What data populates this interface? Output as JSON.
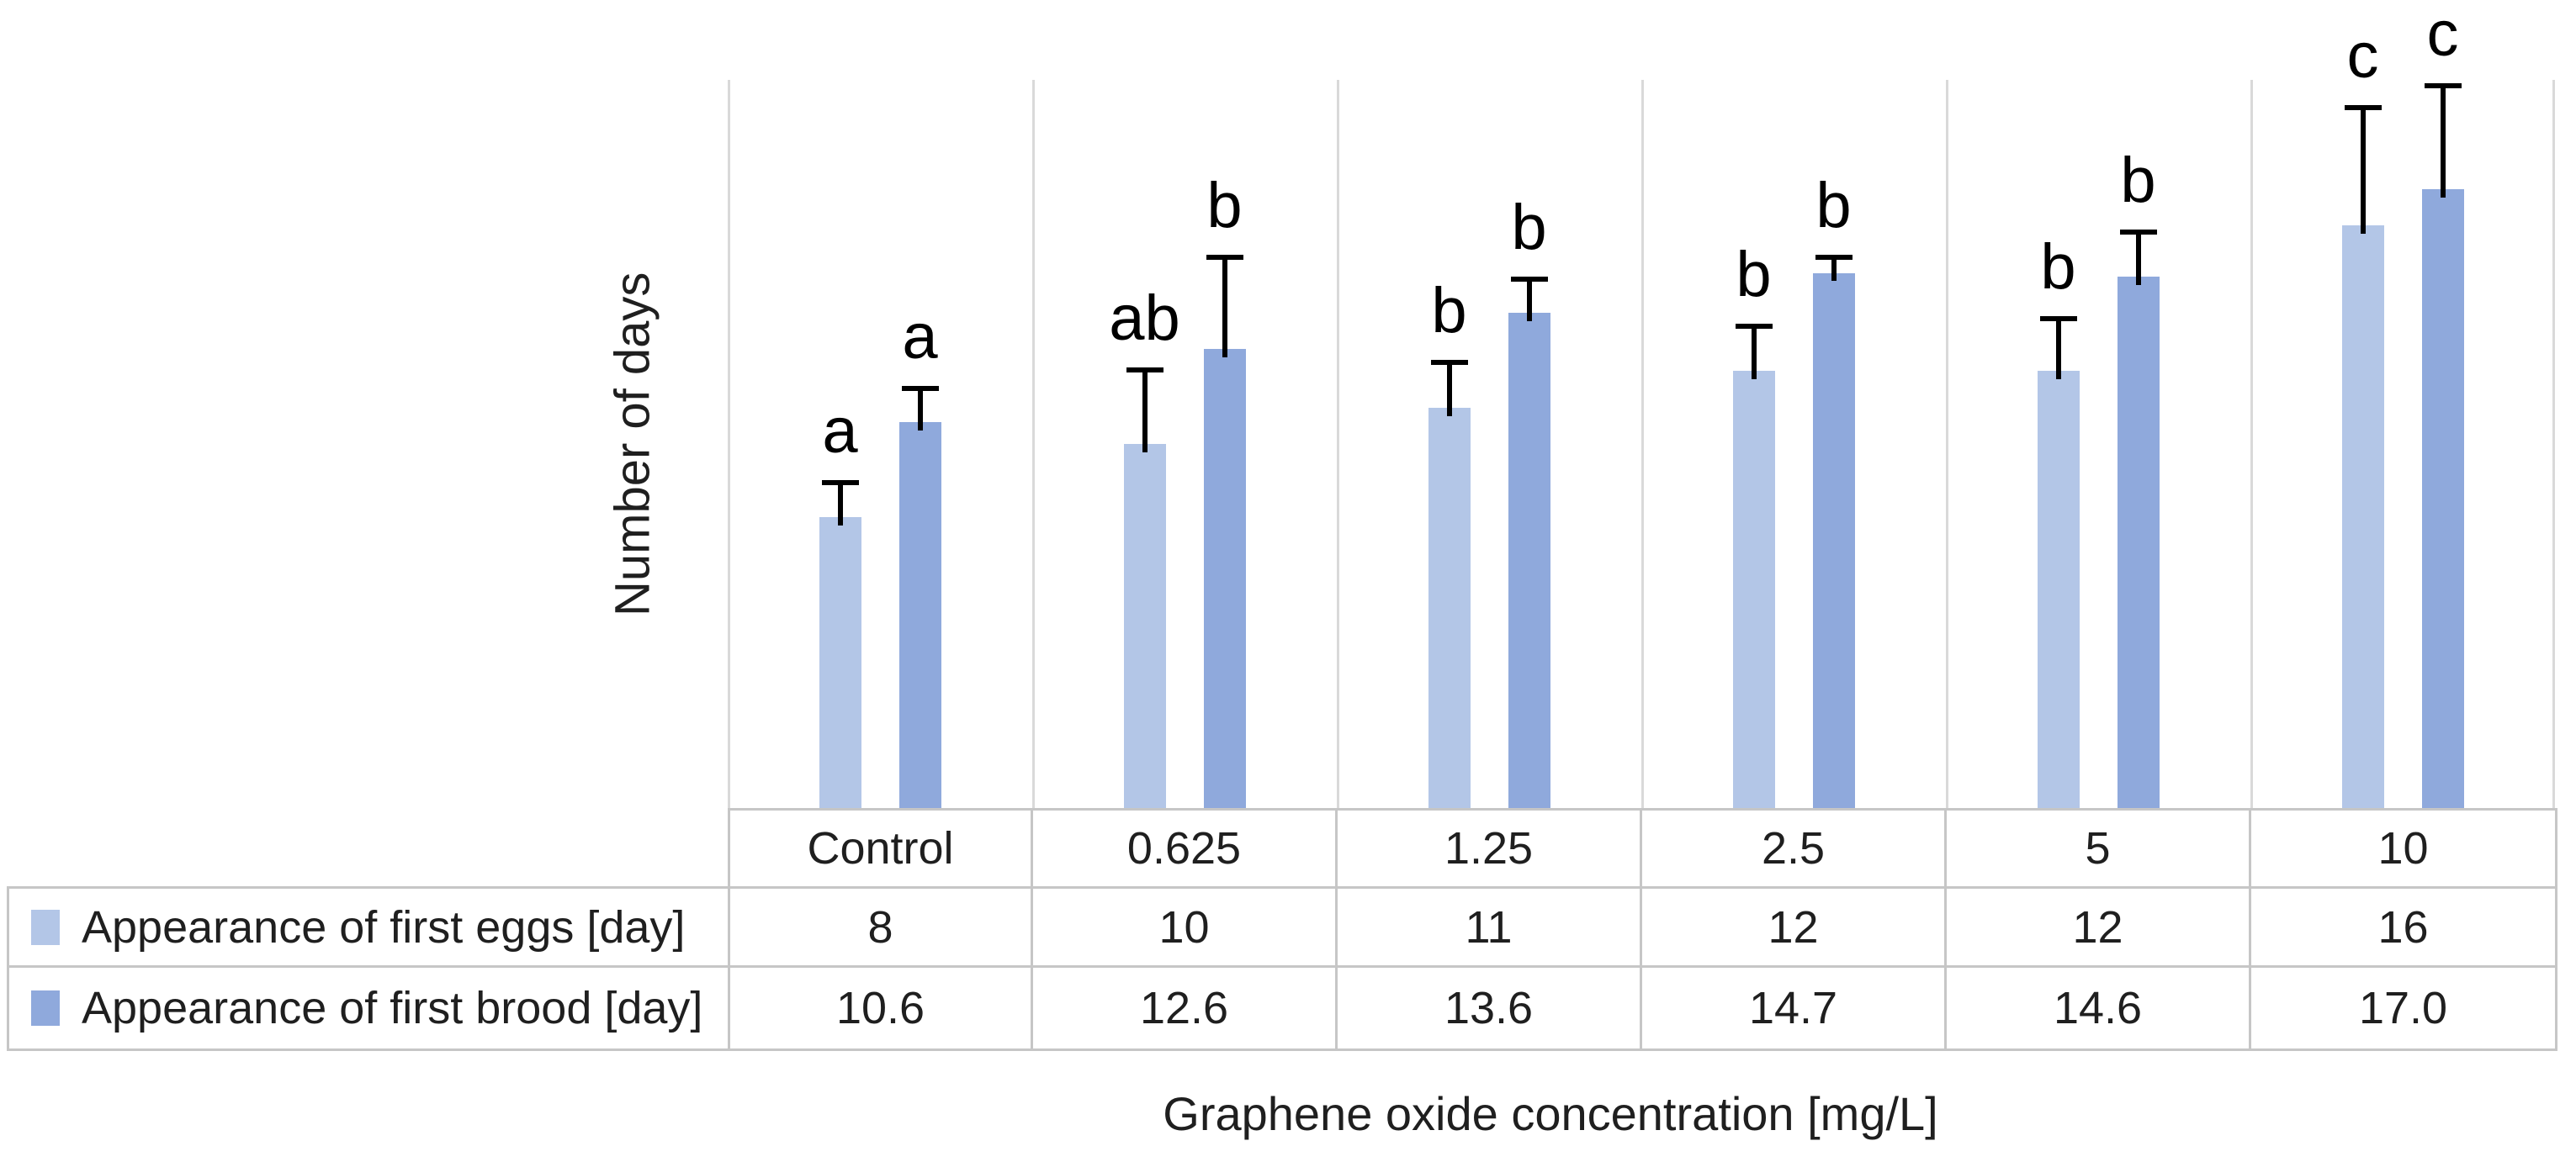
{
  "chart_data": {
    "type": "bar",
    "title": "",
    "categories": [
      "Control",
      "0.625",
      "1.25",
      "2.5",
      "5",
      "10"
    ],
    "series": [
      {
        "name": "Appearance of first eggs [day]",
        "color": "#b3c6e7",
        "values": [
          8,
          10,
          11,
          12,
          12,
          16
        ],
        "errors_plus": [
          1.0,
          2.1,
          1.3,
          1.3,
          1.5,
          3.3
        ],
        "letters": [
          "a",
          "ab",
          "b",
          "b",
          "b",
          "c"
        ]
      },
      {
        "name": "Appearance of first brood [day]",
        "color": "#8fa9dc",
        "values": [
          10.6,
          12.6,
          13.6,
          14.7,
          14.6,
          17.0
        ],
        "errors_plus": [
          1.0,
          2.6,
          1.0,
          0.5,
          1.3,
          2.9
        ],
        "letters": [
          "a",
          "b",
          "b",
          "b",
          "b",
          "c"
        ]
      }
    ],
    "xlabel": "Graphene oxide concentration [mg/L]",
    "ylabel": "Number of days",
    "ylim": [
      0,
      20
    ],
    "grid": "vertical-only",
    "legend_position": "table-left",
    "error_bar_direction": "plus"
  },
  "table": {
    "header": [
      "Control",
      "0.625",
      "1.25",
      "2.5",
      "5",
      "10"
    ],
    "rows": [
      {
        "label": "Appearance of first eggs [day]",
        "swatch_color": "#b3c6e7",
        "values": [
          "8",
          "10",
          "11",
          "12",
          "12",
          "16"
        ]
      },
      {
        "label": "Appearance of first brood [day]",
        "swatch_color": "#8fa9dc",
        "values": [
          "10.6",
          "12.6",
          "13.6",
          "14.7",
          "14.6",
          "17.0"
        ]
      }
    ]
  },
  "colors": {
    "series_light": "#b3c6e7",
    "series_dark": "#8fa9dc",
    "gridline": "#d9d9d9",
    "table_border": "#c6c6c6",
    "text": "#1f1f1f",
    "error_bar": "#000000",
    "background": "#ffffff"
  }
}
